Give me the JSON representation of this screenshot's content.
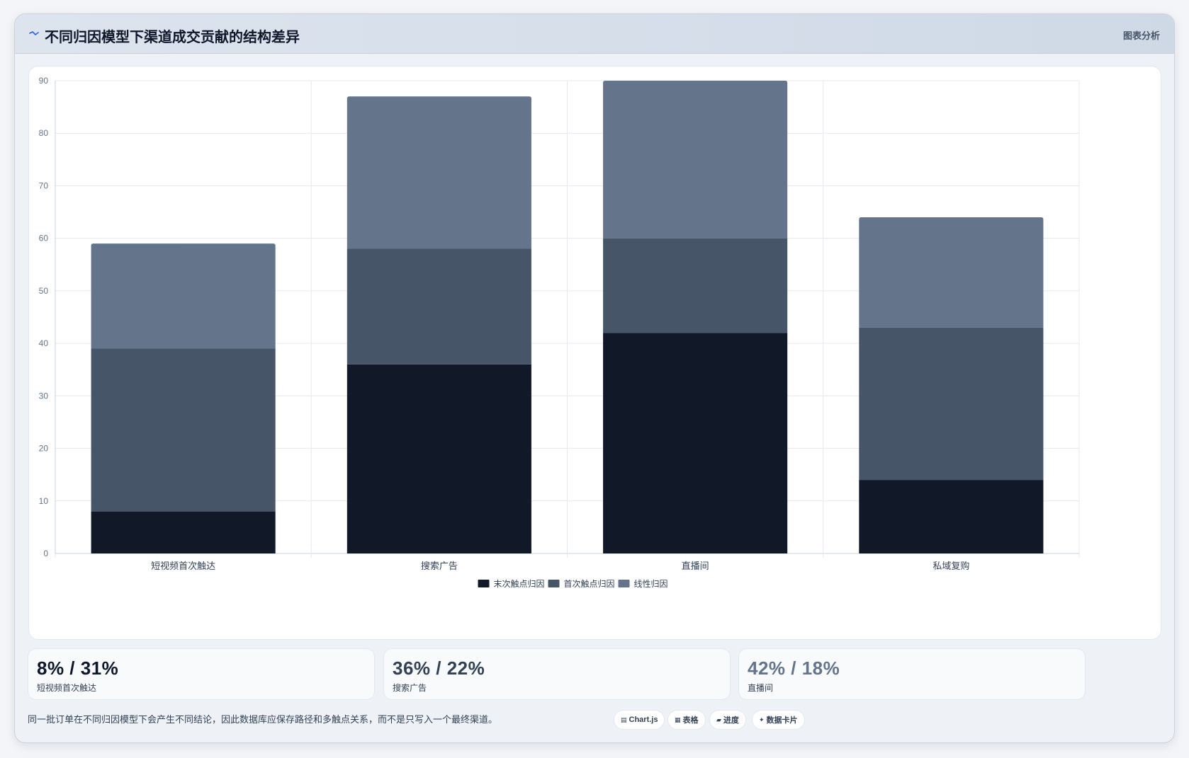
{
  "header": {
    "title": "不同归因模型下渠道成交贡献的结构差异",
    "tag": "图表分析"
  },
  "chart_data": {
    "type": "bar",
    "stacked": true,
    "categories": [
      "短视频首次触达",
      "搜索广告",
      "直播间",
      "私域复购"
    ],
    "series": [
      {
        "name": "末次触点归因",
        "values": [
          8,
          36,
          42,
          14
        ],
        "color": "#111827"
      },
      {
        "name": "首次触点归因",
        "values": [
          31,
          22,
          18,
          29
        ],
        "color": "#475569"
      },
      {
        "name": "线性归因",
        "values": [
          20,
          29,
          30,
          21
        ],
        "color": "#64748b"
      }
    ],
    "ylim": [
      0,
      90
    ],
    "yticks": [
      0,
      10,
      20,
      30,
      40,
      50,
      60,
      70,
      80,
      90
    ],
    "grid": true,
    "legend_position": "bottom"
  },
  "stats": [
    {
      "value": "8% / 31%",
      "label": "短视频首次触达",
      "color": "#0f172a"
    },
    {
      "value": "36% / 22%",
      "label": "搜索广告",
      "color": "#334155"
    },
    {
      "value": "42% / 18%",
      "label": "直播间",
      "color": "#64748b"
    }
  ],
  "footnote": "同一批订单在不同归因模型下会产生不同结论，因此数据库应保存路径和多触点关系，而不是只写入一个最终渠道。",
  "pills": [
    {
      "icon": "chart-icon",
      "glyph": "▤",
      "label": "Chart.js"
    },
    {
      "icon": "table-icon",
      "glyph": "▦",
      "label": "表格"
    },
    {
      "icon": "progress-icon",
      "glyph": "▰",
      "label": "进度"
    },
    {
      "icon": "sparkle-icon",
      "glyph": "✦",
      "label": "数据卡片"
    }
  ]
}
